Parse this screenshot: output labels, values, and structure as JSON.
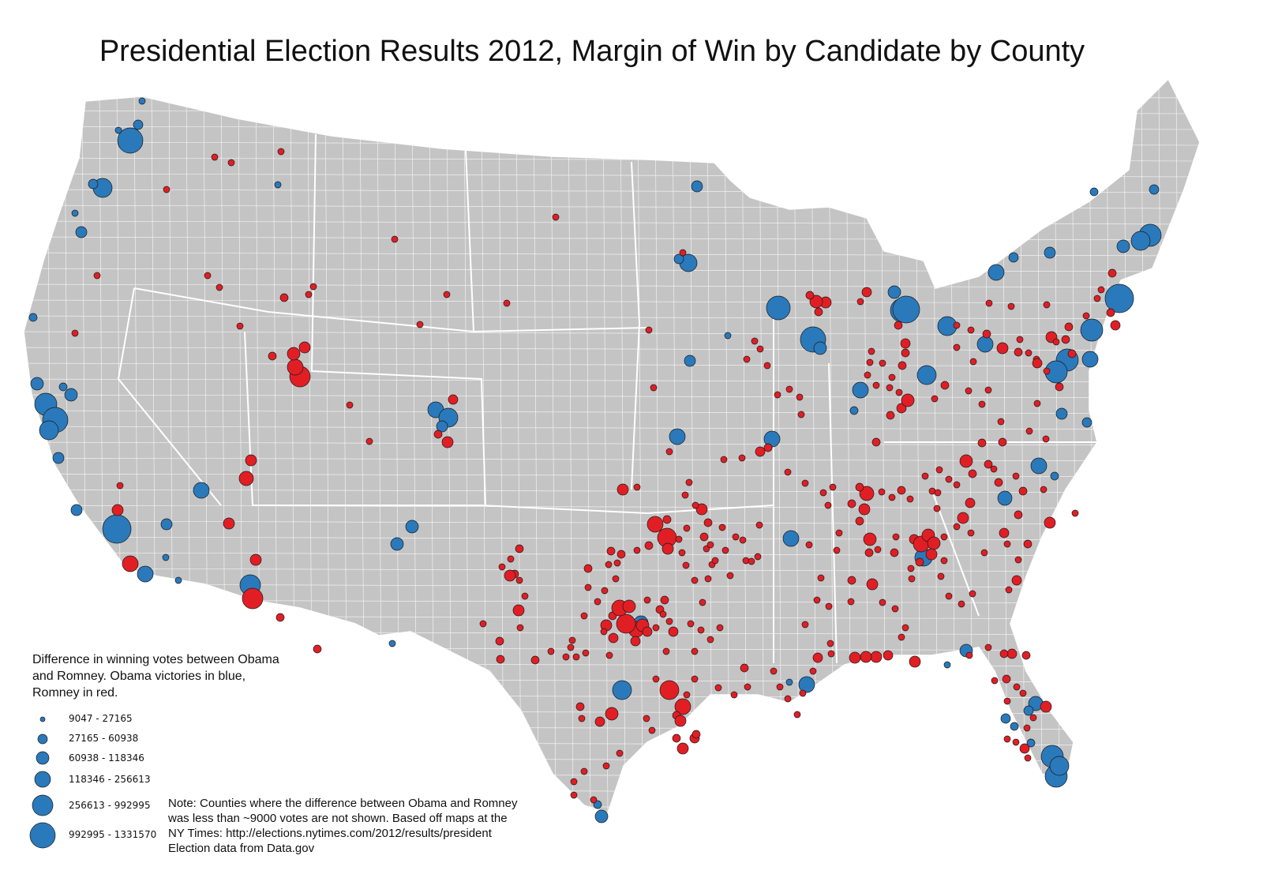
{
  "title": "Presidential Election Results 2012, Margin of Win by Candidate by County",
  "legend": {
    "description": "Difference in winning votes between Obama and Romney. Obama victories in blue, Romney in red.",
    "items": [
      {
        "label": "9047 - 27165"
      },
      {
        "label": "27165 - 60938"
      },
      {
        "label": "60938 - 118346"
      },
      {
        "label": "118346 - 256613"
      },
      {
        "label": "256613 - 992995"
      },
      {
        "label": "992995 - 1331570"
      }
    ]
  },
  "note": {
    "lines": [
      "Note: Counties where the difference between Obama and Romney",
      "was less than ~9000 votes are not shown. Based off maps at the",
      "NY Times: http://elections.nytimes.com/2012/results/president",
      "Election data from Data.gov"
    ]
  },
  "colors": {
    "land": "#c4c4c4",
    "border": "#ffffff",
    "obama": "#2a79bb",
    "romney": "#e21e25",
    "outline": "#1a1a1a"
  }
}
